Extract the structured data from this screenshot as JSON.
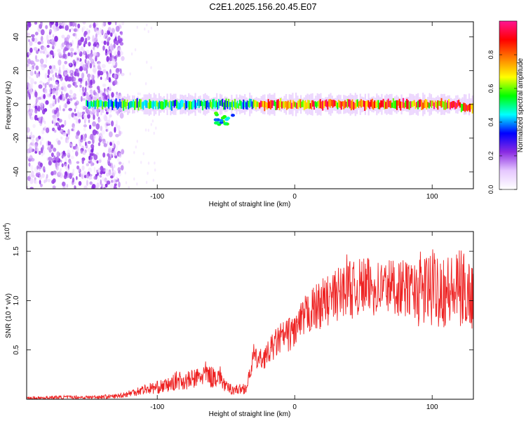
{
  "title": "C2E1.2025.156.20.45.E07",
  "colors": {
    "snr_line": "#ee2222",
    "frame": "#000000",
    "background": "#ffffff"
  },
  "chart_data": [
    {
      "type": "heatmap",
      "title": "C2E1.2025.156.20.45.E07",
      "xlabel": "Height of straight line (km)",
      "ylabel": "Frequency (Hz)",
      "xlim": [
        -195,
        130
      ],
      "ylim": [
        -50,
        49
      ],
      "x_ticks": [
        -100,
        0,
        100
      ],
      "y_ticks": [
        -40,
        -20,
        0,
        20,
        40
      ],
      "grid": false,
      "colorbar": {
        "label": "Normalized spectral amplitude",
        "range": [
          0,
          1
        ],
        "ticks": [
          "0.0",
          "0.2",
          "0.4",
          "0.6",
          "0.8"
        ],
        "colormap": [
          "#ffffff",
          "#e6c8ff",
          "#8a2be2",
          "#0000ff",
          "#00ffff",
          "#00ff00",
          "#ffff00",
          "#ff8000",
          "#ff0000",
          "#ff1493"
        ]
      },
      "features": {
        "noise_region_x": [
          -195,
          -125
        ],
        "signal_band_center_hz": 0,
        "signal_start_x": -152,
        "strong_signal_x": [
          -30,
          130
        ],
        "side_feature": {
          "x": [
            -58,
            -45
          ],
          "y": [
            -12,
            -5
          ]
        }
      }
    },
    {
      "type": "line",
      "xlabel": "Height of straight line (km)",
      "ylabel": "SNR (10 * v/v)",
      "y_scale_label": "(x10^4)",
      "xlim": [
        -195,
        130
      ],
      "ylim": [
        0,
        1.7
      ],
      "x_ticks": [
        -100,
        0,
        100
      ],
      "y_ticks": [
        0.5,
        1.0,
        1.5
      ],
      "grid": false,
      "series": [
        {
          "color": "#ee2222",
          "x": [
            -195,
            -170,
            -150,
            -130,
            -120,
            -110,
            -100,
            -90,
            -85,
            -80,
            -75,
            -70,
            -65,
            -60,
            -55,
            -50,
            -45,
            -40,
            -35,
            -32,
            -30,
            -28,
            -25,
            -20,
            -15,
            -10,
            -5,
            0,
            5,
            10,
            15,
            20,
            25,
            30,
            35,
            38,
            40,
            42,
            45,
            50,
            60,
            70,
            80,
            90,
            100,
            105,
            110,
            115,
            120,
            125,
            130
          ],
          "values": [
            0.01,
            0.02,
            0.02,
            0.03,
            0.06,
            0.1,
            0.12,
            0.15,
            0.2,
            0.18,
            0.2,
            0.22,
            0.26,
            0.22,
            0.25,
            0.12,
            0.1,
            0.1,
            0.12,
            0.3,
            0.45,
            0.4,
            0.4,
            0.45,
            0.55,
            0.62,
            0.65,
            0.7,
            0.78,
            0.88,
            0.92,
            0.98,
            1.0,
            1.05,
            1.1,
            1.18,
            1.15,
            1.1,
            1.12,
            1.15,
            1.13,
            1.15,
            1.12,
            1.1,
            1.12,
            1.15,
            1.1,
            1.08,
            1.12,
            1.1,
            1.05
          ]
        }
      ]
    }
  ]
}
